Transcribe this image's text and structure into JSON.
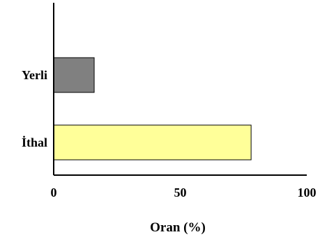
{
  "chart_data": {
    "type": "bar",
    "orientation": "horizontal",
    "categories": [
      "Yerli",
      "İthal"
    ],
    "values": [
      16,
      78
    ],
    "colors": [
      "#808080",
      "#ffff99"
    ],
    "edge_color": "#000000",
    "xlabel": "Oran (%)",
    "ylabel": "",
    "title": "",
    "xlim": [
      0,
      100
    ],
    "xticks": [
      "0",
      "50",
      "100"
    ],
    "grid": false,
    "legend": "none"
  }
}
